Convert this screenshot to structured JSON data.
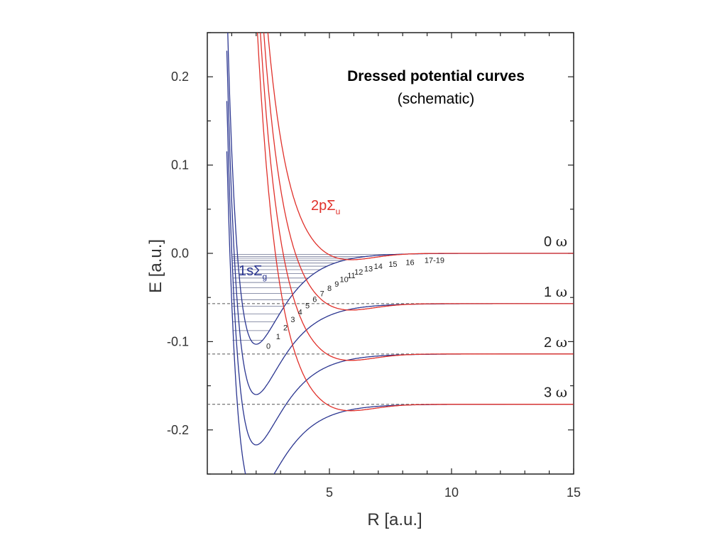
{
  "chart_data": {
    "type": "line",
    "title": "Dressed potential curves",
    "subtitle": "(schematic)",
    "xlabel": "R [a.u.]",
    "ylabel": "E [a.u.]",
    "xlim": [
      0,
      15
    ],
    "ylim": [
      -0.25,
      0.25
    ],
    "x_ticks": [
      5,
      10,
      15
    ],
    "x_tick_labels": [
      "5",
      "10",
      "15"
    ],
    "y_ticks": [
      0.2,
      0.1,
      0.0,
      -0.1,
      -0.2
    ],
    "y_tick_labels": [
      "0.2",
      "0.1",
      "0.0",
      "-0.1",
      "-0.2"
    ],
    "photon_levels": [
      {
        "label": "0 ω",
        "num": "0",
        "sym": "ω",
        "energy": 0.0,
        "dashed": false
      },
      {
        "label": "1 ω",
        "num": "1",
        "sym": "ω",
        "energy": -0.057,
        "dashed": true
      },
      {
        "label": "2 ω",
        "num": "2",
        "sym": "ω",
        "energy": -0.114,
        "dashed": true
      },
      {
        "label": "3 ω",
        "num": "3",
        "sym": "ω",
        "energy": -0.171,
        "dashed": true
      }
    ],
    "state_labels": [
      {
        "main": "1sΣ",
        "sub": "g",
        "color": "#2a3590"
      },
      {
        "main": "2pΣ",
        "sub": "u",
        "color": "#e0302a"
      }
    ],
    "vibrational_levels": {
      "labels": [
        "0",
        "1",
        "2",
        "3",
        "4",
        "5",
        "6",
        "7",
        "8",
        "9",
        "10",
        "11",
        "12",
        "13",
        "14",
        "15",
        "16",
        "17-19"
      ],
      "energies": [
        -0.0985,
        -0.0875,
        -0.0775,
        -0.0685,
        -0.06,
        -0.0525,
        -0.0455,
        -0.039,
        -0.033,
        -0.028,
        -0.023,
        -0.0185,
        -0.0145,
        -0.011,
        -0.008,
        -0.0055,
        -0.0035,
        -0.0012
      ],
      "label_R": [
        2.5,
        2.9,
        3.2,
        3.5,
        3.8,
        4.1,
        4.4,
        4.7,
        5.0,
        5.3,
        5.6,
        5.9,
        6.2,
        6.6,
        7.0,
        7.6,
        8.3,
        9.3
      ]
    },
    "series": [
      {
        "name": "1sΣg",
        "color": "#2a3590",
        "shift": 0.0
      },
      {
        "name": "2pΣu",
        "color": "#e0302a",
        "shift": 0.0
      },
      {
        "name": "1sΣg",
        "color": "#2a3590",
        "shift": -0.057
      },
      {
        "name": "2pΣu",
        "color": "#e0302a",
        "shift": -0.057
      },
      {
        "name": "1sΣg",
        "color": "#2a3590",
        "shift": -0.114
      },
      {
        "name": "2pΣu",
        "color": "#e0302a",
        "shift": -0.114
      },
      {
        "name": "1sΣg",
        "color": "#2a3590",
        "shift": -0.171
      },
      {
        "name": "2pΣu",
        "color": "#e0302a",
        "shift": -0.171
      }
    ],
    "legend": "none",
    "grid": false
  }
}
